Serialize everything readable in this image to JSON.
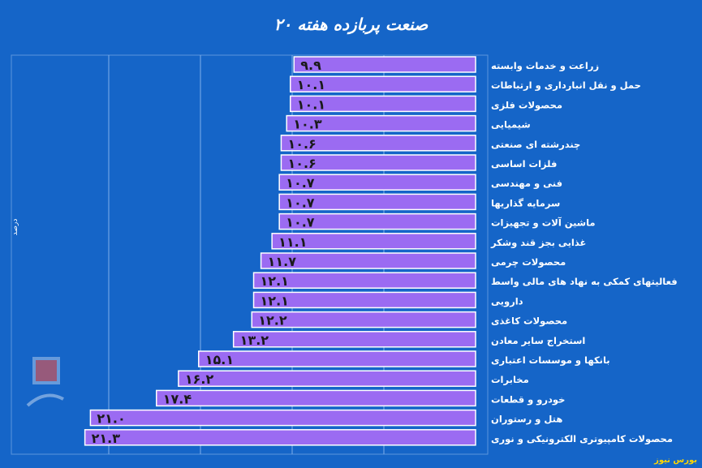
{
  "chart_data": {
    "type": "bar",
    "orientation": "horizontal",
    "title": "۲۰ صنعت پربازده هفته",
    "ylabel": "درصد",
    "source": "بورس نیوز",
    "grid": true,
    "xlim": [
      0,
      22
    ],
    "colors": {
      "background": "#1565c8",
      "bar": "#9b6bf2",
      "bar_edge": "#ffffff",
      "label": "#ffffff",
      "value": "#1a1a1a"
    },
    "categories": [
      "زراعت و خدمات وابسته",
      "حمل و نقل انبارداری و ارتباطات",
      "محصولات فلزی",
      "شیمیایی",
      "چندرشته ای صنعتی",
      "فلزات اساسی",
      "فنی و مهندسی",
      "سرمایه گذاریها",
      "ماشین آلات و تجهیزات",
      "غذایی بجز قند وشکر",
      "محصولات چرمی",
      "فعالیتهای کمکی به نهاد های مالی واسط",
      "دارویی",
      "محصولات کاغذی",
      "استخراج سایر معادن",
      "بانکها و موسسات اعتباری",
      "مخابرات",
      "خودرو و قطعات",
      "هتل و رستوران",
      "محصولات کامپیوتری الکترونیکی و نوری"
    ],
    "values": [
      9.9,
      10.1,
      10.1,
      10.3,
      10.6,
      10.6,
      10.7,
      10.7,
      10.7,
      11.1,
      11.7,
      12.1,
      12.1,
      12.2,
      13.2,
      15.1,
      16.2,
      17.4,
      21.0,
      21.3
    ],
    "value_labels": [
      "۹.۹",
      "۱۰.۱",
      "۱۰.۱",
      "۱۰.۳",
      "۱۰.۶",
      "۱۰.۶",
      "۱۰.۷",
      "۱۰.۷",
      "۱۰.۷",
      "۱۱.۱",
      "۱۱.۷",
      "۱۲.۱",
      "۱۲.۱",
      "۱۲.۲",
      "۱۳.۲",
      "۱۵.۱",
      "۱۶.۲",
      "۱۷.۴",
      "۲۱.۰",
      "۲۱.۳"
    ]
  }
}
